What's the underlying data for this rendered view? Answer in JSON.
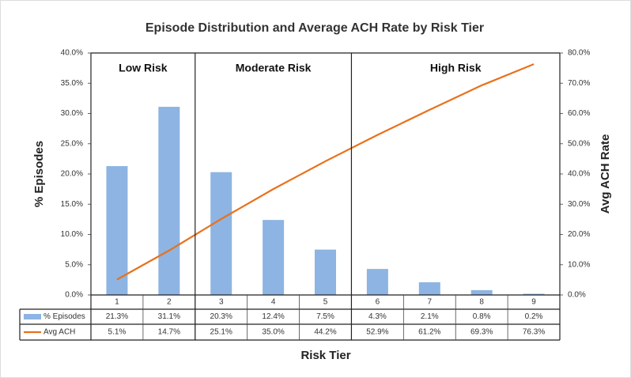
{
  "chart_data": {
    "type": "bar_line",
    "title": "Episode Distribution and Average ACH Rate by Risk Tier",
    "x_label": "Risk Tier",
    "y_label": "% Episodes",
    "y2_label": "Avg ACH Rate",
    "categories": [
      "1",
      "2",
      "3",
      "4",
      "5",
      "6",
      "7",
      "8",
      "9"
    ],
    "groups": [
      {
        "label": "Low Risk",
        "count": 2
      },
      {
        "label": "Moderate Risk",
        "count": 3
      },
      {
        "label": "High Risk",
        "count": 4
      }
    ],
    "series": [
      {
        "name": "% Episodes",
        "type": "bar",
        "color": "#8db4e2",
        "values": [
          21.3,
          31.1,
          20.3,
          12.4,
          7.5,
          4.3,
          2.1,
          0.8,
          0.2
        ],
        "value_labels": [
          "21.3%",
          "31.1%",
          "20.3%",
          "12.4%",
          "7.5%",
          "4.3%",
          "2.1%",
          "0.8%",
          "0.2%"
        ]
      },
      {
        "name": "Avg ACH",
        "type": "line",
        "axis": "y2",
        "color": "#e8711c",
        "values": [
          5.1,
          14.7,
          25.1,
          35.0,
          44.2,
          52.9,
          61.2,
          69.3,
          76.3
        ],
        "value_labels": [
          "5.1%",
          "14.7%",
          "25.1%",
          "35.0%",
          "44.2%",
          "52.9%",
          "61.2%",
          "69.3%",
          "76.3%"
        ]
      }
    ],
    "ylim": [
      0,
      40
    ],
    "yticks": [
      {
        "value": 0,
        "label": "0.0%"
      },
      {
        "value": 5,
        "label": "5.0%"
      },
      {
        "value": 10,
        "label": "10.0%"
      },
      {
        "value": 15,
        "label": "15.0%"
      },
      {
        "value": 20,
        "label": "20.0%"
      },
      {
        "value": 25,
        "label": "25.0%"
      },
      {
        "value": 30,
        "label": "30.0%"
      },
      {
        "value": 35,
        "label": "35.0%"
      },
      {
        "value": 40,
        "label": "40.0%"
      }
    ],
    "y2lim": [
      0,
      80
    ],
    "y2ticks": [
      {
        "value": 0,
        "label": "0.0%"
      },
      {
        "value": 10,
        "label": "10.0%"
      },
      {
        "value": 20,
        "label": "20.0%"
      },
      {
        "value": 30,
        "label": "30.0%"
      },
      {
        "value": 40,
        "label": "40.0%"
      },
      {
        "value": 50,
        "label": "50.0%"
      },
      {
        "value": 60,
        "label": "60.0%"
      },
      {
        "value": 70,
        "label": "70.0%"
      },
      {
        "value": 80,
        "label": "80.0%"
      }
    ]
  }
}
